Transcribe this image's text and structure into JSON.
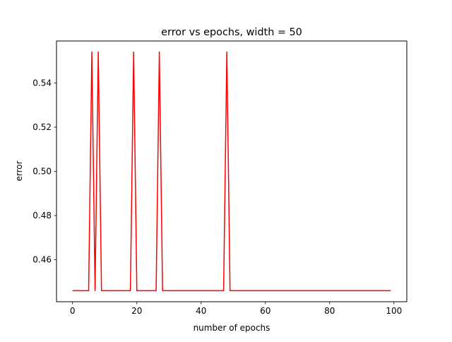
{
  "chart_data": {
    "type": "line",
    "title": "error vs epochs, width = 50",
    "xlabel": "number of epochs",
    "ylabel": "error",
    "xlim": [
      -5,
      104
    ],
    "ylim": [
      0.441,
      0.559
    ],
    "xticks": [
      0,
      20,
      40,
      60,
      80,
      100
    ],
    "xtick_labels": [
      "0",
      "20",
      "40",
      "60",
      "80",
      "100"
    ],
    "yticks": [
      0.46,
      0.48,
      0.5,
      0.52,
      0.54
    ],
    "ytick_labels": [
      "0.46",
      "0.48",
      "0.50",
      "0.52",
      "0.54"
    ],
    "grid": false,
    "legend": "none",
    "series": [
      {
        "color": "#ff0000",
        "baseline": 0.446,
        "peak": 0.554,
        "peak_epochs": [
          6,
          8,
          19,
          27,
          48
        ],
        "x_start": 0,
        "x_end": 99
      }
    ]
  }
}
